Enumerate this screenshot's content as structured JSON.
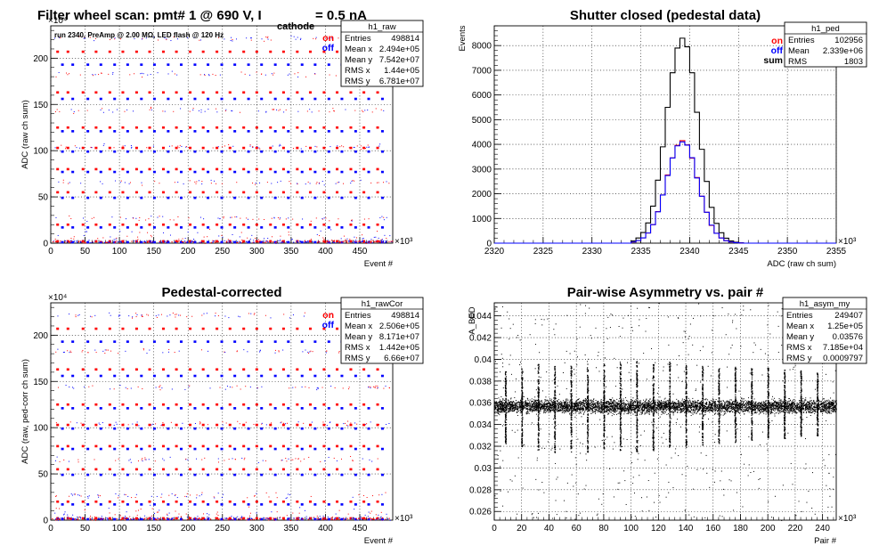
{
  "header": {
    "title_main": "Filter wheel scan: pmt#   1 @   690 V, I",
    "title_sub": "cathode",
    "title_tail": "= 0.5 nA",
    "annotation": "run 2340, PreAmp @ 2.00 MΩ, LED flash @  120 Hz"
  },
  "colors": {
    "on": "#ff0000",
    "off": "#0000ff",
    "sum": "#000000",
    "axis": "#000000"
  },
  "chart_data": [
    {
      "id": "raw",
      "type": "scatter",
      "title": "",
      "xlabel": "Event #",
      "ylabel": "ADC (raw ch sum)",
      "x_exponent": "×10³",
      "y_exponent": "×10⁴",
      "xlim": [
        0,
        498
      ],
      "ylim": [
        0,
        235
      ],
      "x_ticks": [
        0,
        50,
        100,
        150,
        200,
        250,
        300,
        350,
        400,
        450
      ],
      "y_ticks": [
        0,
        50,
        100,
        150,
        200
      ],
      "grid": true,
      "legend": [
        {
          "name": "on",
          "color": "#ff0000"
        },
        {
          "name": "off",
          "color": "#0000ff"
        }
      ],
      "stats_box": {
        "name": "h1_raw",
        "rows": [
          {
            "label": "Entries",
            "value": "498814"
          },
          {
            "label": "Mean x",
            "value": "2.494e+05"
          },
          {
            "label": "Mean y",
            "value": "7.542e+07"
          },
          {
            "label": "RMS x",
            "value": "1.44e+05"
          },
          {
            "label": "RMS y",
            "value": "6.781e+07"
          }
        ]
      },
      "cluster_x": [
        10,
        25,
        47,
        66,
        86,
        105,
        125,
        144,
        164,
        183,
        203,
        222,
        242,
        261,
        281,
        300,
        320,
        339,
        359,
        378,
        398,
        417,
        437,
        456,
        476
      ],
      "levels_on": [
        2,
        20,
        55,
        80,
        103,
        125,
        163,
        207
      ],
      "levels_off": [
        1,
        17,
        49,
        77,
        99,
        121,
        156,
        193
      ],
      "band_step": 39,
      "band_start": 27
    },
    {
      "id": "ped",
      "type": "line",
      "title": "Shutter closed (pedestal data)",
      "xlabel": "ADC (raw ch sum)",
      "ylabel": "Events",
      "x_exponent": "×10³",
      "xlim": [
        2320,
        2355
      ],
      "ylim": [
        0,
        8800
      ],
      "x_ticks": [
        2320,
        2325,
        2330,
        2335,
        2340,
        2345,
        2350,
        2355
      ],
      "y_ticks": [
        0,
        1000,
        2000,
        3000,
        4000,
        5000,
        6000,
        7000,
        8000
      ],
      "grid": true,
      "legend": [
        {
          "name": "on",
          "color": "#ff0000"
        },
        {
          "name": "off",
          "color": "#0000ff"
        },
        {
          "name": "sum",
          "color": "#000000"
        }
      ],
      "stats_box": {
        "name": "h1_ped",
        "rows": [
          {
            "label": "Entries",
            "value": "102956"
          },
          {
            "label": "Mean",
            "value": "2.339e+06"
          },
          {
            "label": "RMS",
            "value": "1803"
          }
        ]
      },
      "bin_width": 0.5,
      "bin_start": 2334,
      "sum_counts": [
        90,
        210,
        430,
        820,
        1500,
        2550,
        3900,
        5500,
        6900,
        7900,
        8300,
        7950,
        6900,
        5300,
        3800,
        2500,
        1450,
        800,
        420,
        200,
        90,
        40,
        15
      ],
      "on_counts": [
        45,
        105,
        215,
        410,
        750,
        1280,
        1950,
        2760,
        3450,
        3960,
        4150,
        3980,
        3440,
        2660,
        1900,
        1250,
        720,
        400,
        210,
        100,
        45,
        20,
        8
      ],
      "off_counts": [
        45,
        105,
        215,
        410,
        750,
        1270,
        1950,
        2740,
        3450,
        3940,
        4100,
        3970,
        3460,
        2640,
        1900,
        1250,
        730,
        400,
        210,
        100,
        45,
        20,
        7
      ]
    },
    {
      "id": "rawCor",
      "type": "scatter",
      "title": "Pedestal-corrected",
      "xlabel": "Event #",
      "ylabel": "ADC (raw, ped-corr ch sum)",
      "x_exponent": "×10³",
      "y_exponent": "×10⁴",
      "xlim": [
        0,
        498
      ],
      "ylim": [
        0,
        235
      ],
      "x_ticks": [
        0,
        50,
        100,
        150,
        200,
        250,
        300,
        350,
        400,
        450
      ],
      "y_ticks": [
        0,
        50,
        100,
        150,
        200
      ],
      "grid": true,
      "legend": [
        {
          "name": "on",
          "color": "#ff0000"
        },
        {
          "name": "off",
          "color": "#0000ff"
        }
      ],
      "stats_box": {
        "name": "h1_rawCor",
        "rows": [
          {
            "label": "Entries",
            "value": "498814"
          },
          {
            "label": "Mean x",
            "value": "2.506e+05"
          },
          {
            "label": "Mean y",
            "value": "8.171e+07"
          },
          {
            "label": "RMS x",
            "value": "1.442e+05"
          },
          {
            "label": "RMS y",
            "value": "6.66e+07"
          }
        ]
      },
      "cluster_x": [
        10,
        25,
        47,
        66,
        86,
        105,
        125,
        144,
        164,
        183,
        203,
        222,
        242,
        261,
        281,
        300,
        320,
        339,
        359,
        378,
        398,
        417,
        437,
        456,
        476
      ],
      "levels_on": [
        2,
        20,
        55,
        80,
        103,
        125,
        163,
        207
      ],
      "levels_off": [
        1,
        17,
        49,
        77,
        99,
        121,
        156,
        193
      ],
      "band_step": 39,
      "band_start": 27
    },
    {
      "id": "asym",
      "type": "scatter",
      "title": "Pair-wise Asymmetry vs. pair #",
      "xlabel": "Pair #",
      "ylabel": "A_BED",
      "x_exponent": "×10³",
      "xlim": [
        0,
        250
      ],
      "ylim": [
        0.0252,
        0.0452
      ],
      "x_ticks": [
        0,
        20,
        40,
        60,
        80,
        100,
        120,
        140,
        160,
        180,
        200,
        220,
        240
      ],
      "y_ticks": [
        0.026,
        0.028,
        0.03,
        0.032,
        0.034,
        0.036,
        0.038,
        0.04,
        0.042,
        0.044
      ],
      "grid": true,
      "stats_box": {
        "name": "h1_asym_my",
        "rows": [
          {
            "label": "Entries",
            "value": "249407"
          },
          {
            "label": "Mean x",
            "value": "1.25e+05"
          },
          {
            "label": "Mean y",
            "value": "0.03576"
          },
          {
            "label": "RMS x",
            "value": "7.185e+04"
          },
          {
            "label": "RMS y",
            "value": "0.0009797"
          }
        ]
      },
      "band_center": 0.0357,
      "band_halfwidth": 0.0009,
      "spike_x": [
        8,
        20,
        32,
        44,
        56,
        68,
        80,
        92,
        104,
        116,
        128,
        140,
        152,
        164,
        176,
        188,
        200,
        212,
        224,
        236
      ],
      "spike_up": [
        0.0389,
        0.0392,
        0.0396,
        0.0394,
        0.0395,
        0.0397,
        0.0396,
        0.0398,
        0.0399,
        0.0396,
        0.0398,
        0.0395,
        0.0394,
        0.0392,
        0.0394,
        0.0392,
        0.0393,
        0.0391,
        0.039,
        0.0388
      ],
      "spike_down": [
        0.0322,
        0.032,
        0.0316,
        0.0314,
        0.0315,
        0.0315,
        0.0317,
        0.0316,
        0.0315,
        0.0316,
        0.0318,
        0.0319,
        0.0321,
        0.0323,
        0.0324,
        0.0326,
        0.0327,
        0.0326,
        0.0329,
        0.033
      ]
    }
  ]
}
